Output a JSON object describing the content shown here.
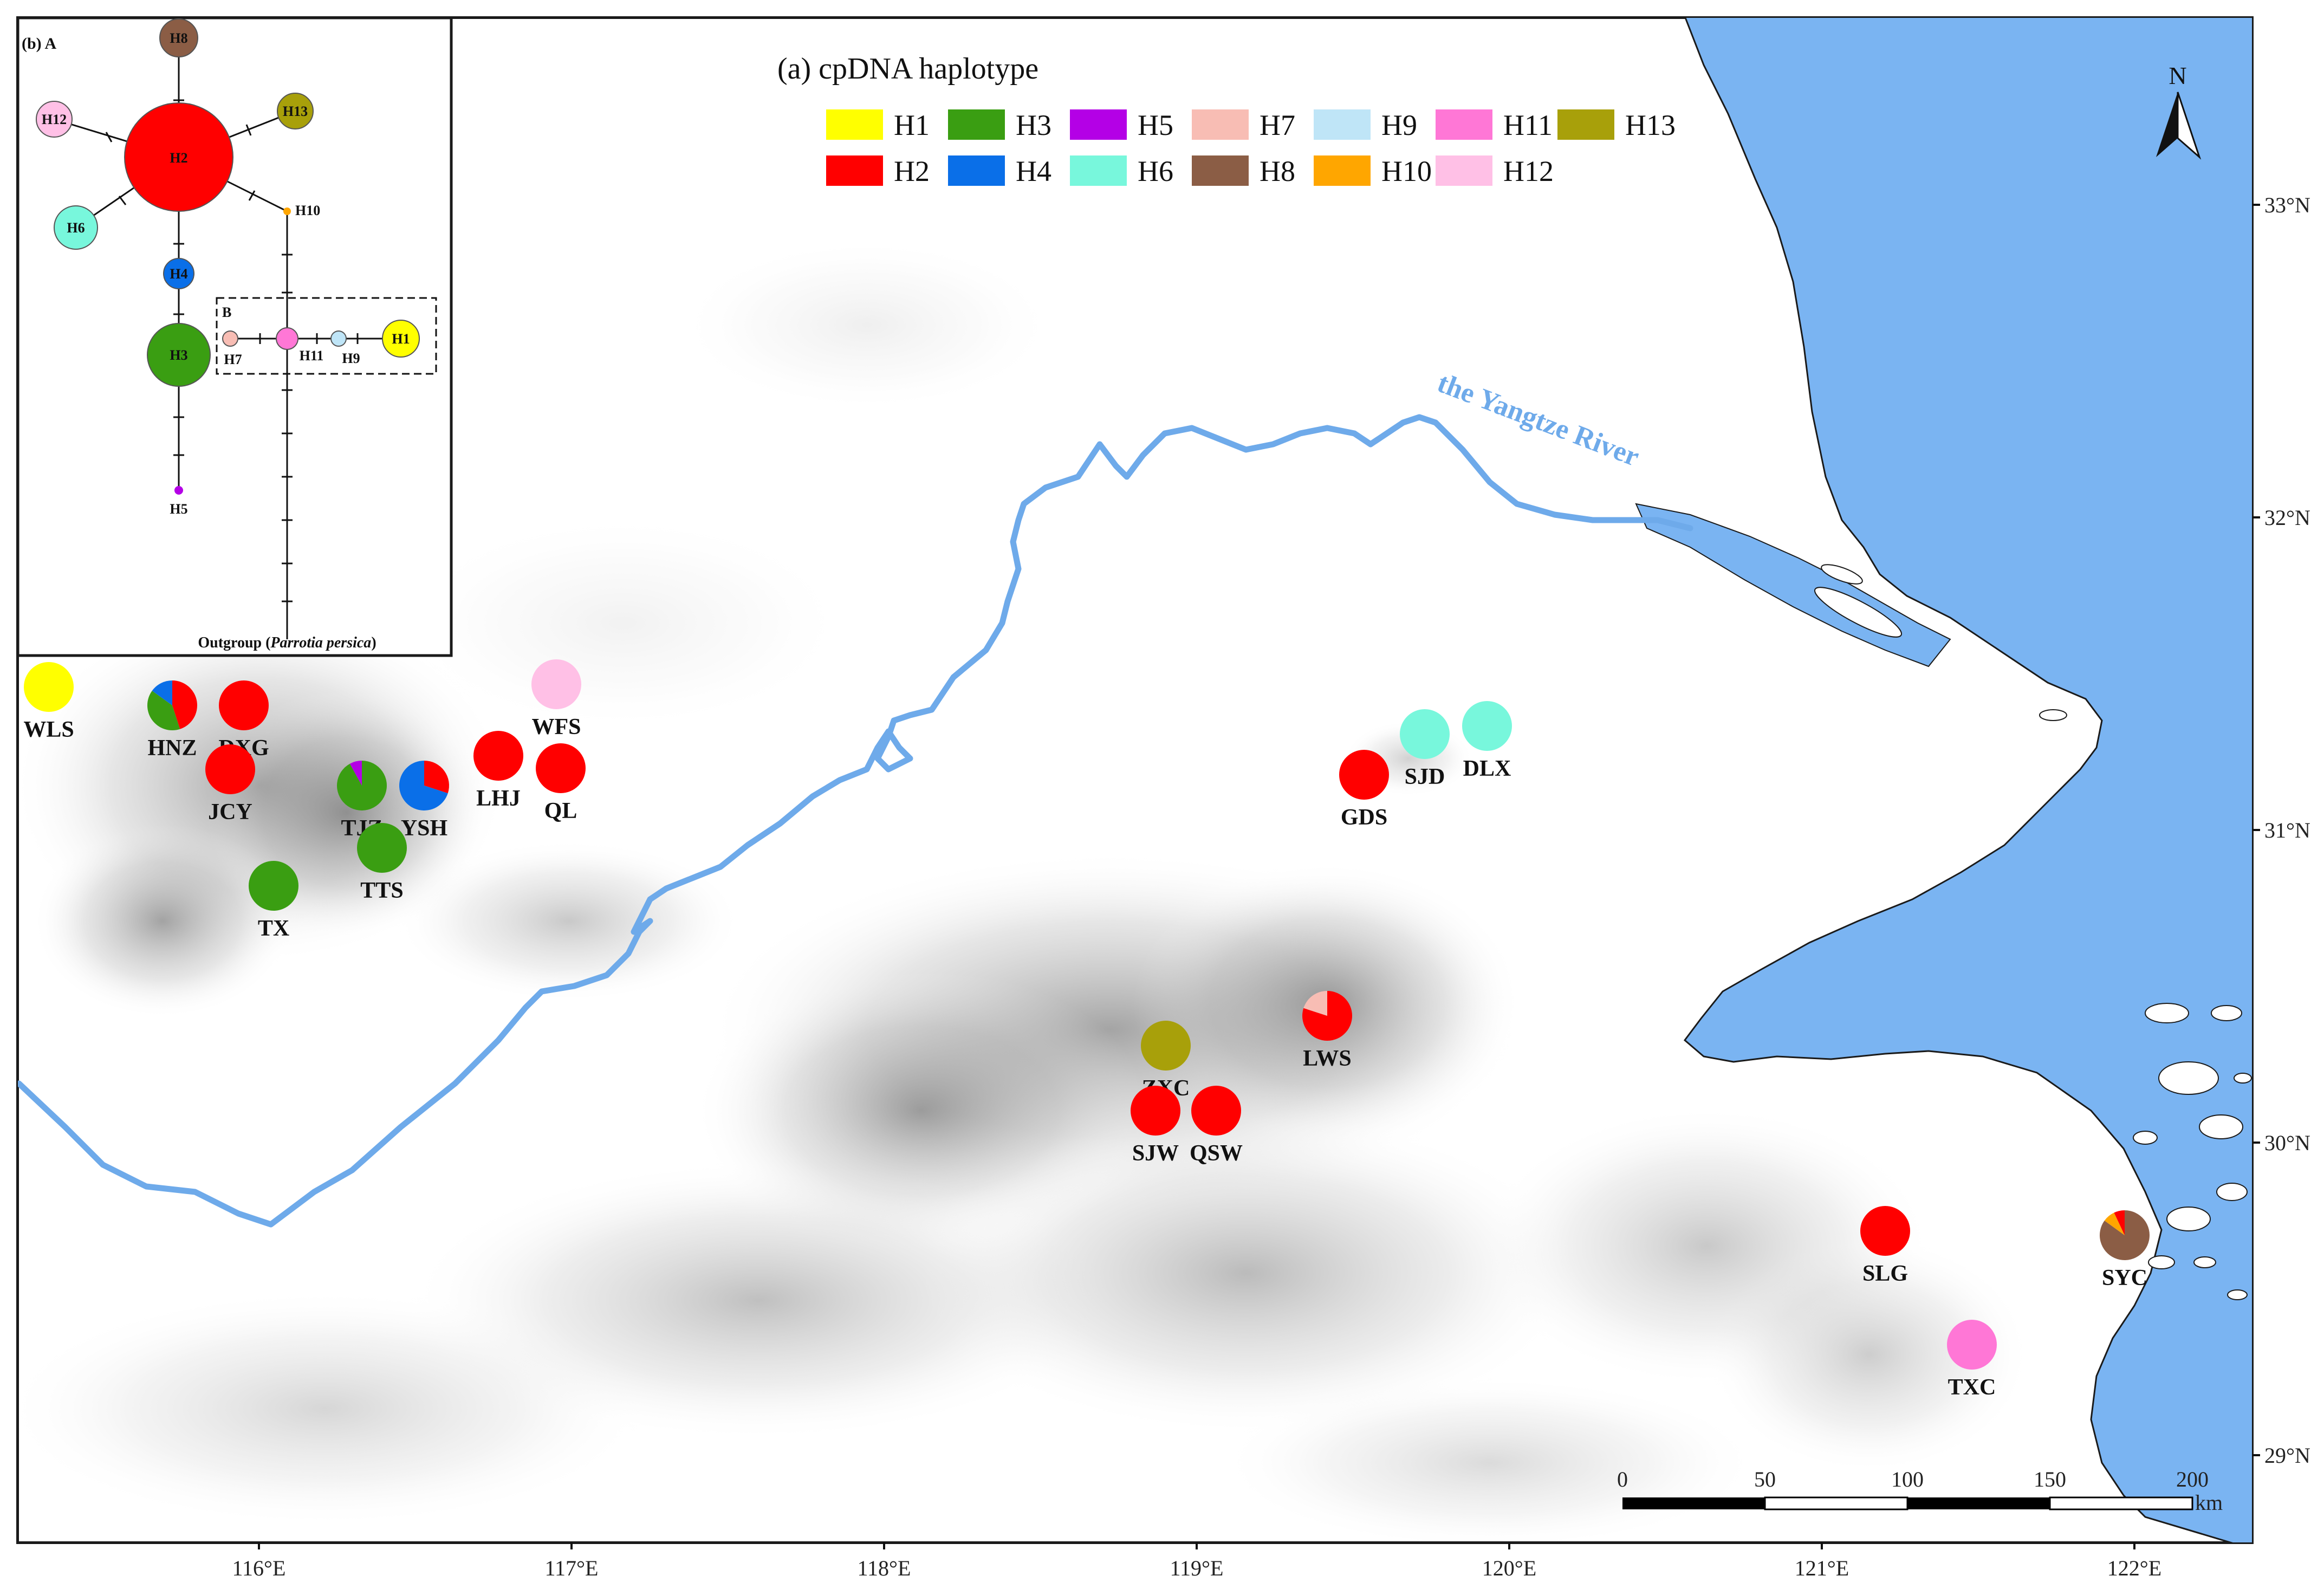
{
  "legend": {
    "title": "(a) cpDNA haplotype",
    "items": [
      {
        "label": "H1",
        "color": "#ffff00"
      },
      {
        "label": "H2",
        "color": "#ff0000"
      },
      {
        "label": "H3",
        "color": "#3a9e12"
      },
      {
        "label": "H4",
        "color": "#0a6fe8"
      },
      {
        "label": "H5",
        "color": "#b400e6"
      },
      {
        "label": "H6",
        "color": "#78f7dc"
      },
      {
        "label": "H7",
        "color": "#f8bdb4"
      },
      {
        "label": "H8",
        "color": "#8b5d45"
      },
      {
        "label": "H9",
        "color": "#bfe5f7"
      },
      {
        "label": "H10",
        "color": "#ffa600"
      },
      {
        "label": "H11",
        "color": "#ff77d6"
      },
      {
        "label": "H12",
        "color": "#ffc0e6"
      },
      {
        "label": "H13",
        "color": "#a8a00a"
      }
    ]
  },
  "river_label": "the Yangtze River",
  "north_label": "N",
  "longitude_ticks": [
    "116°E",
    "117°E",
    "118°E",
    "119°E",
    "120°E",
    "121°E",
    "122°E"
  ],
  "latitude_ticks": [
    "33°N",
    "32°N",
    "31°N",
    "30°N",
    "29°N"
  ],
  "scale_bar": {
    "ticks": [
      "0",
      "50",
      "100",
      "150",
      "200"
    ],
    "unit": "km"
  },
  "populations": [
    {
      "code": "WLS",
      "haplotypes": {
        "H1": 1
      }
    },
    {
      "code": "HNZ",
      "haplotypes": {
        "H2": 0.45,
        "H3": 0.4,
        "H4": 0.15
      }
    },
    {
      "code": "DXG",
      "haplotypes": {
        "H2": 1
      }
    },
    {
      "code": "JCY",
      "haplotypes": {
        "H2": 1
      }
    },
    {
      "code": "TJZ",
      "haplotypes": {
        "H3": 0.92,
        "H5": 0.08
      }
    },
    {
      "code": "YSH",
      "haplotypes": {
        "H2": 0.3,
        "H4": 0.7
      }
    },
    {
      "code": "LHJ",
      "haplotypes": {
        "H2": 1
      }
    },
    {
      "code": "QL",
      "haplotypes": {
        "H2": 1
      }
    },
    {
      "code": "WFS",
      "haplotypes": {
        "H12": 1
      }
    },
    {
      "code": "TTS",
      "haplotypes": {
        "H3": 1
      }
    },
    {
      "code": "TX",
      "haplotypes": {
        "H3": 1
      }
    },
    {
      "code": "GDS",
      "haplotypes": {
        "H2": 1
      }
    },
    {
      "code": "SJD",
      "haplotypes": {
        "H6": 1
      }
    },
    {
      "code": "DLX",
      "haplotypes": {
        "H6": 1
      }
    },
    {
      "code": "LWS",
      "haplotypes": {
        "H2": 0.8,
        "H7": 0.2
      }
    },
    {
      "code": "ZXC",
      "haplotypes": {
        "H13": 1
      }
    },
    {
      "code": "SJW",
      "haplotypes": {
        "H2": 1
      }
    },
    {
      "code": "QSW",
      "haplotypes": {
        "H2": 1
      }
    },
    {
      "code": "SLG",
      "haplotypes": {
        "H2": 1
      }
    },
    {
      "code": "TXC",
      "haplotypes": {
        "H11": 1
      }
    },
    {
      "code": "SYC",
      "haplotypes": {
        "H8": 0.85,
        "H10": 0.08,
        "H2": 0.07
      }
    }
  ],
  "network": {
    "panel_title": "(b) A",
    "box_label": "B",
    "outgroup_prefix": "Outgroup (",
    "outgroup_species": "Parrotia persica",
    "outgroup_suffix": ")"
  }
}
